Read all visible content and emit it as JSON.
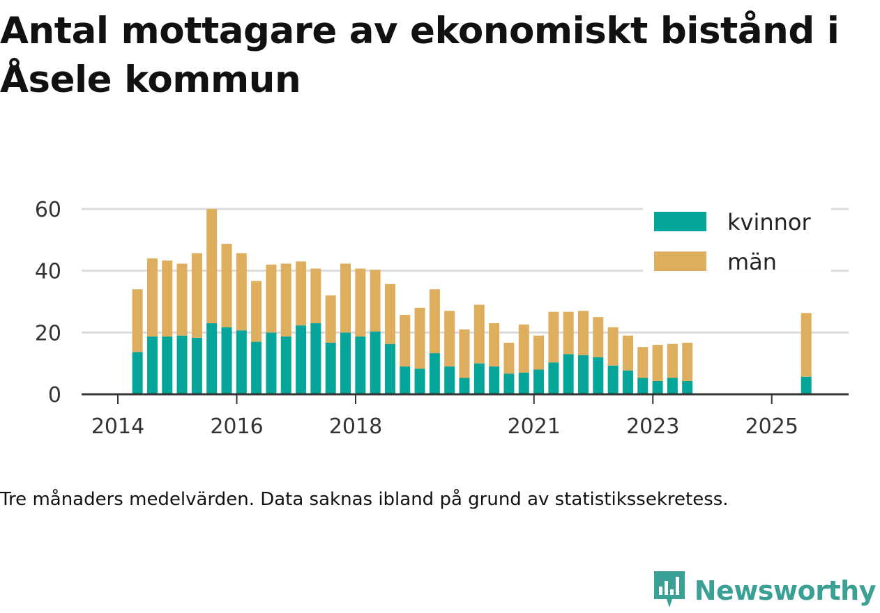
{
  "title": "Antal mottagare av ekonomiskt bistånd i Åsele kommun",
  "footnote": "Tre månaders medelvärden. Data saknas ibland på grund av statistikssekretess.",
  "brand": {
    "name": "Newsworthy",
    "icon": "newsworthy-logo-icon"
  },
  "colors": {
    "kvinnor": "#06a59a",
    "man": "#ddae5e",
    "grid": "#dcdcdc",
    "axis": "#333333",
    "brand": "#3a9f95"
  },
  "chart_data": {
    "type": "bar",
    "stacked": true,
    "xlabel": "",
    "ylabel": "",
    "ylim": [
      0,
      60
    ],
    "yticks": [
      0,
      20,
      40,
      60
    ],
    "xticks": [
      {
        "label": "2014",
        "value": 2014.0
      },
      {
        "label": "2016",
        "value": 2016.0
      },
      {
        "label": "2018",
        "value": 2018.0
      },
      {
        "label": "2021",
        "value": 2021.0
      },
      {
        "label": "2023",
        "value": 2023.0
      },
      {
        "label": "2025",
        "value": 2025.0
      }
    ],
    "xlim": [
      2013.6,
      2026.3
    ],
    "legend": {
      "position": "top-right",
      "entries": [
        "kvinnor",
        "män"
      ]
    },
    "x": [
      2014.33,
      2014.58,
      2014.83,
      2015.08,
      2015.33,
      2015.58,
      2015.83,
      2016.08,
      2016.33,
      2016.58,
      2016.83,
      2017.08,
      2017.33,
      2017.58,
      2017.83,
      2018.08,
      2018.33,
      2018.58,
      2018.83,
      2019.08,
      2019.33,
      2019.58,
      2019.83,
      2020.08,
      2020.33,
      2020.58,
      2020.83,
      2021.08,
      2021.33,
      2021.58,
      2021.83,
      2022.08,
      2022.33,
      2022.58,
      2022.83,
      2023.08,
      2023.33,
      2023.58,
      2025.58
    ],
    "series": [
      {
        "name": "kvinnor",
        "values": [
          13.7,
          18.7,
          18.7,
          19.0,
          18.3,
          23.0,
          21.7,
          20.7,
          17.0,
          20.0,
          18.7,
          22.3,
          23.0,
          16.7,
          20.0,
          18.7,
          20.3,
          16.3,
          9.0,
          8.3,
          13.3,
          9.0,
          5.3,
          10.0,
          9.0,
          6.7,
          7.0,
          8.0,
          10.3,
          13.0,
          12.7,
          12.0,
          9.3,
          7.7,
          5.3,
          4.3,
          5.3,
          4.3,
          5.7
        ]
      },
      {
        "name": "män",
        "values": [
          20.3,
          25.3,
          24.6,
          23.3,
          27.4,
          37.0,
          27.0,
          25.0,
          19.7,
          22.0,
          23.6,
          20.7,
          17.7,
          15.3,
          22.3,
          22.0,
          20.0,
          19.4,
          16.7,
          19.7,
          20.7,
          18.0,
          15.7,
          19.0,
          14.0,
          10.0,
          15.6,
          11.0,
          16.4,
          13.7,
          14.3,
          13.0,
          12.4,
          11.3,
          10.0,
          11.7,
          11.0,
          12.4,
          20.6
        ]
      }
    ]
  }
}
